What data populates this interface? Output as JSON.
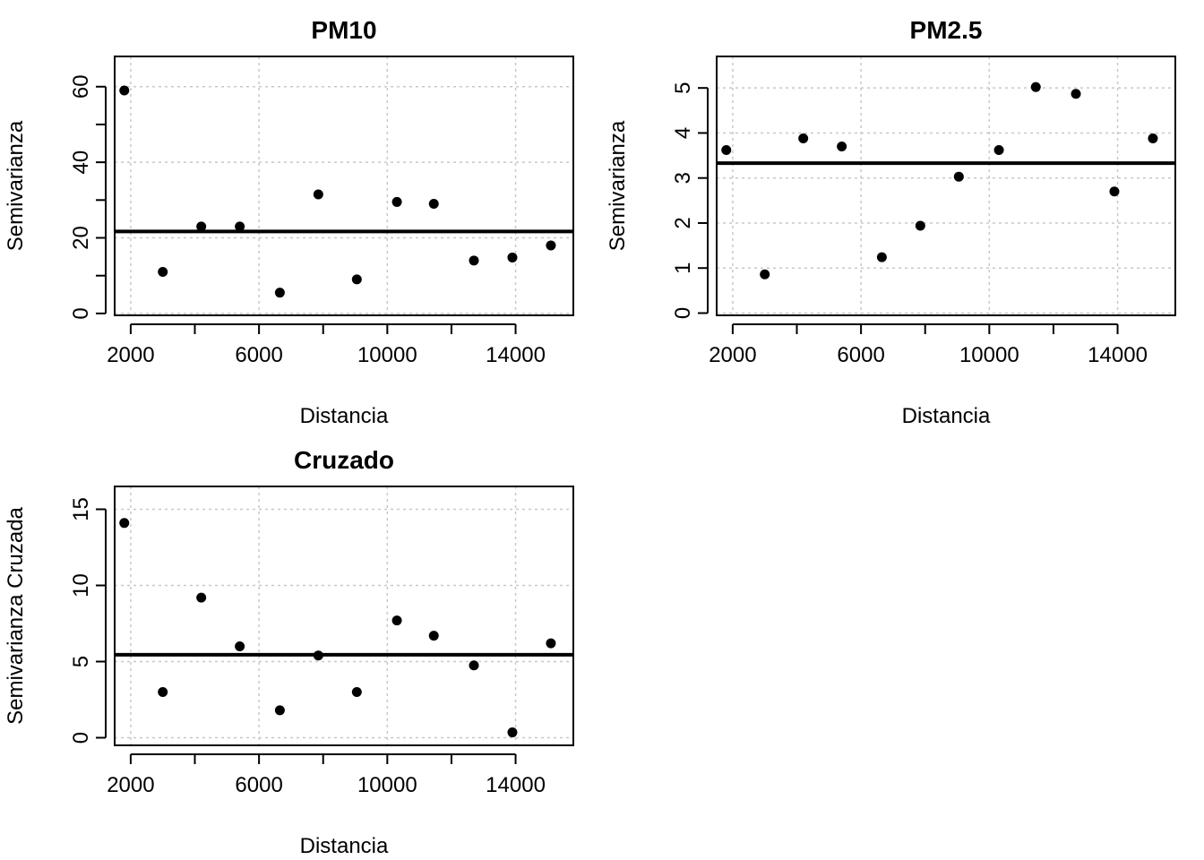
{
  "chart_data": [
    {
      "type": "scatter",
      "title": "PM10",
      "xlabel": "Distancia",
      "ylabel": "Semivarianza",
      "xlim": [
        1500,
        15800
      ],
      "ylim": [
        -0.5,
        68
      ],
      "xticks": [
        2000,
        6000,
        10000,
        14000
      ],
      "xminor": [
        4000,
        8000,
        12000
      ],
      "yticks": [
        0,
        20,
        40,
        60
      ],
      "yminor": [
        10,
        30,
        50
      ],
      "x": [
        1800,
        3000,
        4200,
        5400,
        6650,
        7850,
        9050,
        10300,
        11450,
        12700,
        13900,
        15100
      ],
      "y": [
        59,
        11,
        23,
        23,
        5.5,
        31.5,
        9,
        29.5,
        29,
        14,
        14.8,
        18
      ],
      "hline": 21.7
    },
    {
      "type": "scatter",
      "title": "PM2.5",
      "xlabel": "Distancia",
      "ylabel": "Semivarianza",
      "xlim": [
        1500,
        15800
      ],
      "ylim": [
        -0.05,
        5.7
      ],
      "xticks": [
        2000,
        6000,
        10000,
        14000
      ],
      "xminor": [
        4000,
        8000,
        12000
      ],
      "yticks": [
        0,
        1,
        2,
        3,
        4,
        5
      ],
      "yminor": [],
      "x": [
        1800,
        3000,
        4200,
        5400,
        6650,
        7850,
        9050,
        10300,
        11450,
        12700,
        13900,
        15100
      ],
      "y": [
        3.62,
        0.86,
        3.88,
        3.7,
        1.24,
        1.94,
        3.03,
        3.62,
        5.02,
        4.87,
        2.7,
        3.88
      ],
      "hline": 3.33
    },
    {
      "type": "scatter",
      "title": "Cruzado",
      "xlabel": "Distancia",
      "ylabel": "Semivarianza Cruzada",
      "xlim": [
        1500,
        15800
      ],
      "ylim": [
        -0.5,
        16.5
      ],
      "xticks": [
        2000,
        6000,
        10000,
        14000
      ],
      "xminor": [
        4000,
        8000,
        12000
      ],
      "yticks": [
        0,
        5,
        10,
        15
      ],
      "yminor": [],
      "x": [
        1800,
        3000,
        4200,
        5400,
        6650,
        7850,
        9050,
        10300,
        11450,
        12700,
        13900,
        15100
      ],
      "y": [
        14.1,
        3.0,
        9.2,
        6.0,
        1.8,
        5.4,
        3.0,
        7.7,
        6.7,
        4.75,
        0.35,
        6.2
      ],
      "hline": 5.45
    }
  ]
}
